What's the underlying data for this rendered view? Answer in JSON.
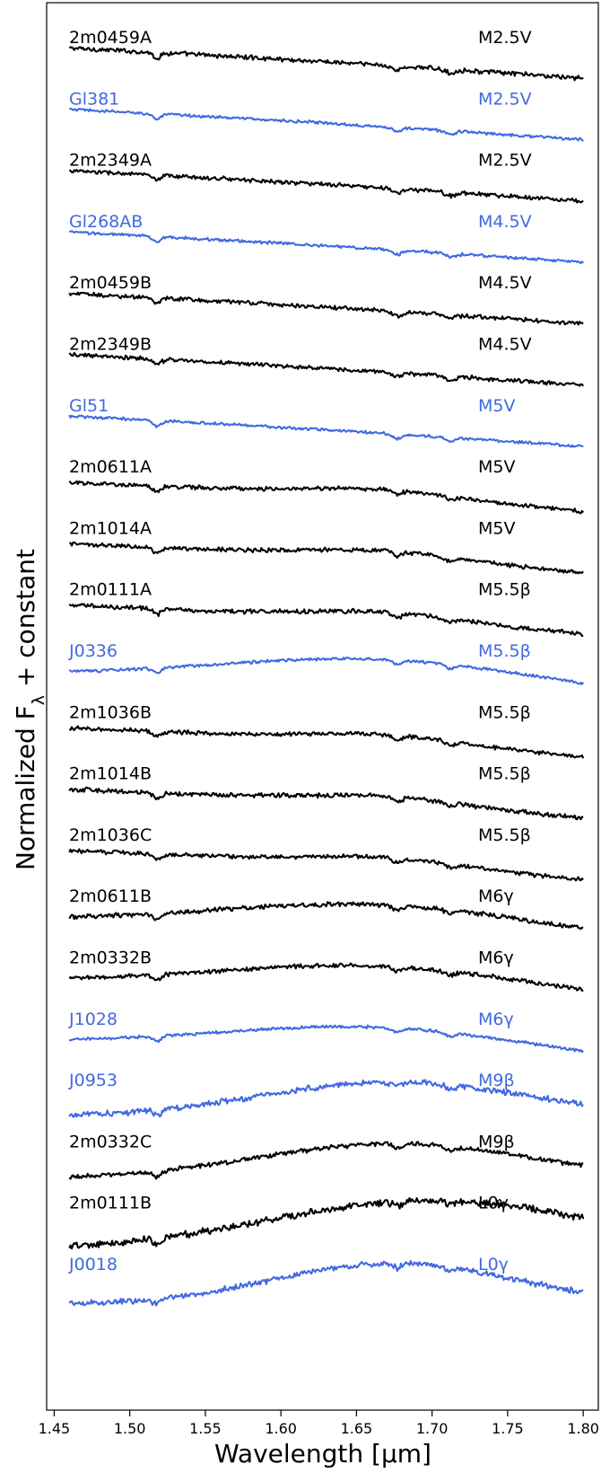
{
  "chart_data": {
    "type": "line",
    "xlabel": "Wavelength [μm]",
    "ylabel": "Normalized F",
    "ylabel_sub": "λ",
    "ylabel_suffix": " + constant",
    "xlim": [
      1.445,
      1.81
    ],
    "xticks": [
      "1.45",
      "1.50",
      "1.55",
      "1.60",
      "1.65",
      "1.70",
      "1.75",
      "1.80"
    ],
    "colors": {
      "object": "#000000",
      "reference": "#4169e1"
    },
    "series": [
      {
        "name": "2m0459A",
        "spt": "M2.5V",
        "kind": "object",
        "shape": "decline",
        "noise": 0.55
      },
      {
        "name": "Gl381",
        "spt": "M2.5V",
        "kind": "reference",
        "shape": "decline",
        "noise": 0.35
      },
      {
        "name": "2m2349A",
        "spt": "M2.5V",
        "kind": "object",
        "shape": "decline",
        "noise": 0.5
      },
      {
        "name": "Gl268AB",
        "spt": "M4.5V",
        "kind": "reference",
        "shape": "decline",
        "noise": 0.35
      },
      {
        "name": "2m0459B",
        "spt": "M4.5V",
        "kind": "object",
        "shape": "decline",
        "noise": 0.5
      },
      {
        "name": "2m2349B",
        "spt": "M4.5V",
        "kind": "object",
        "shape": "decline",
        "noise": 0.5
      },
      {
        "name": "Gl51",
        "spt": "M5V",
        "kind": "reference",
        "shape": "decline",
        "noise": 0.35
      },
      {
        "name": "2m0611A",
        "spt": "M5V",
        "kind": "object",
        "shape": "mid",
        "noise": 0.5
      },
      {
        "name": "2m1014A",
        "spt": "M5V",
        "kind": "object",
        "shape": "mid",
        "noise": 0.5
      },
      {
        "name": "2m0111A",
        "spt": "M5.5β",
        "kind": "object",
        "shape": "mid",
        "noise": 0.55
      },
      {
        "name": "J0336",
        "spt": "M5.5β",
        "kind": "reference",
        "shape": "dome",
        "noise": 0.35
      },
      {
        "name": "2m1036B",
        "spt": "M5.5β",
        "kind": "object",
        "shape": "mid",
        "noise": 0.5
      },
      {
        "name": "2m1014B",
        "spt": "M5.5β",
        "kind": "object",
        "shape": "mid",
        "noise": 0.55
      },
      {
        "name": "2m1036C",
        "spt": "M5.5β",
        "kind": "object",
        "shape": "mid",
        "noise": 0.5
      },
      {
        "name": "2m0611B",
        "spt": "M6γ",
        "kind": "object",
        "shape": "dome",
        "noise": 0.55
      },
      {
        "name": "2m0332B",
        "spt": "M6γ",
        "kind": "object",
        "shape": "dome",
        "noise": 0.5
      },
      {
        "name": "J1028",
        "spt": "M6γ",
        "kind": "reference",
        "shape": "dome",
        "noise": 0.35
      },
      {
        "name": "J0953",
        "spt": "M9β",
        "kind": "reference",
        "shape": "peak",
        "noise": 0.7
      },
      {
        "name": "2m0332C",
        "spt": "M9β",
        "kind": "object",
        "shape": "peak",
        "noise": 0.55
      },
      {
        "name": "2m0111B",
        "spt": "L0γ",
        "kind": "object",
        "shape": "late",
        "noise": 0.9
      },
      {
        "name": "J0018",
        "spt": "L0γ",
        "kind": "reference",
        "shape": "peakL",
        "noise": 0.7
      }
    ]
  }
}
